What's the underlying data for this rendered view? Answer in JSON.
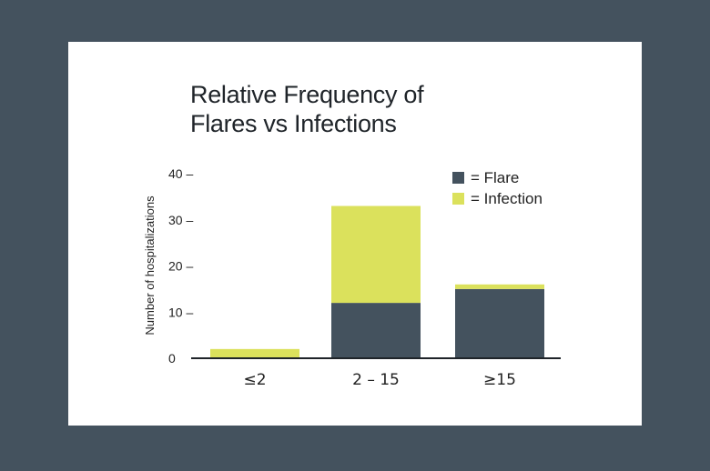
{
  "chart_data": {
    "type": "bar",
    "stacked": true,
    "title": "Relative Frequency of Flares vs Infections",
    "title_lines": [
      "Relative Frequency of",
      "Flares vs Infections"
    ],
    "xlabel": "",
    "ylabel": "Number of hospitalizations",
    "ylim": [
      0,
      40
    ],
    "yticks": [
      0,
      10,
      20,
      30,
      40
    ],
    "ytick_labels": [
      "0",
      "10 –",
      "20 –",
      "30 –",
      "40 –"
    ],
    "categories": [
      "≤2",
      "2 – 15",
      "≥15"
    ],
    "series": [
      {
        "name": "Flare",
        "legend_label": "= Flare",
        "color": "#44525e",
        "values": [
          0,
          12,
          15
        ]
      },
      {
        "name": "Infection",
        "legend_label": "= Infection",
        "color": "#dbe15c",
        "values": [
          2,
          21,
          1
        ]
      }
    ],
    "grid": false,
    "legend": "top-right"
  }
}
